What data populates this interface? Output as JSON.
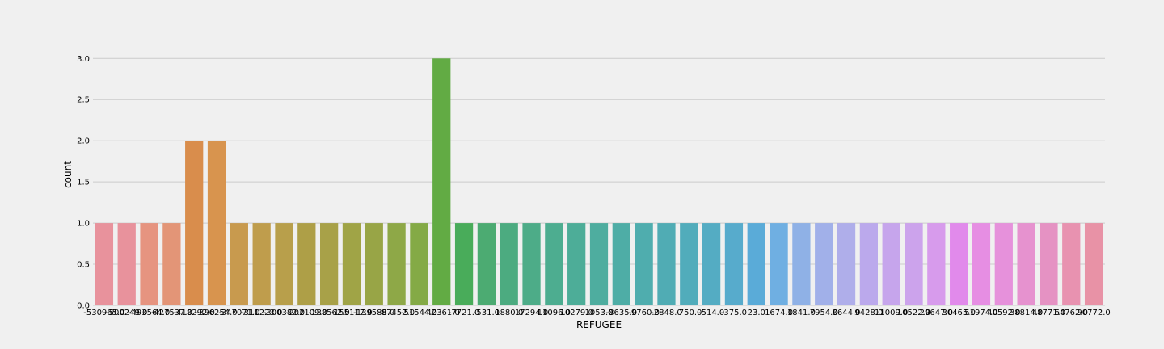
{
  "chart_data": {
    "type": "bar",
    "title": "",
    "xlabel": "REFUGEE",
    "ylabel": "count",
    "ylim": [
      0,
      3.15
    ],
    "yticks": [
      "0.0",
      "0.5",
      "1.0",
      "1.5",
      "2.0",
      "2.5",
      "3.0"
    ],
    "grid": "horizontal",
    "categories": [
      "-530965.0",
      "-500249.0",
      "-493564.0",
      "-427537.0",
      "-418292.0",
      "-396254.0",
      "-347071.0",
      "-311223.0",
      "-300382.0",
      "-202109.0",
      "-188562.0",
      "-155117.0",
      "-139588.0",
      "-87452.0",
      "-51544.0",
      "-42361.0",
      "-7721.0",
      "-531.0",
      "1880.0",
      "17294.0",
      "11096.0",
      "10279.0",
      "1053.0",
      "-8635.0",
      "-9760.0",
      "-2848.0",
      "-750.0",
      "-514.0",
      "-375.0",
      "23.0",
      "1674.0",
      "1841.0",
      "7954.0",
      "8644.0",
      "9428.0",
      "11009.0",
      "10522.0",
      "29647.0",
      "30465.0",
      "51974.0",
      "40592.0",
      "38814.0",
      "48771.0",
      "64762.0",
      "90772.0"
    ],
    "values": [
      1,
      1,
      1,
      1,
      2,
      2,
      1,
      1,
      1,
      1,
      1,
      1,
      1,
      1,
      1,
      3,
      1,
      1,
      1,
      1,
      1,
      1,
      1,
      1,
      1,
      1,
      1,
      1,
      1,
      1,
      1,
      1,
      1,
      1,
      1,
      1,
      1,
      1,
      1,
      1,
      1,
      1,
      1,
      1,
      1
    ],
    "colors": [
      "#e8929c",
      "#e8929c",
      "#e69480",
      "#e39577",
      "#d98d4c",
      "#d8944e",
      "#c89a4e",
      "#bf9d4c",
      "#b89f4b",
      "#ae9f47",
      "#a8a148",
      "#a0a446",
      "#98a546",
      "#8ea847",
      "#84aa46",
      "#62ab44",
      "#49ac5a",
      "#4cab72",
      "#4cab80",
      "#4dac88",
      "#4dad90",
      "#4dad98",
      "#4ead9f",
      "#4eada6",
      "#4fadae",
      "#50acb4",
      "#51acbb",
      "#54acc3",
      "#57abcc",
      "#5aabd8",
      "#6fafe2",
      "#8fb1e6",
      "#a1b0e9",
      "#afaeea",
      "#bba9ec",
      "#c6a5ec",
      "#cca3ec",
      "#d79bec",
      "#e18aeb",
      "#e68ee3",
      "#e691db",
      "#e692cf",
      "#e592c3",
      "#e892b0",
      "#e892a6"
    ]
  }
}
